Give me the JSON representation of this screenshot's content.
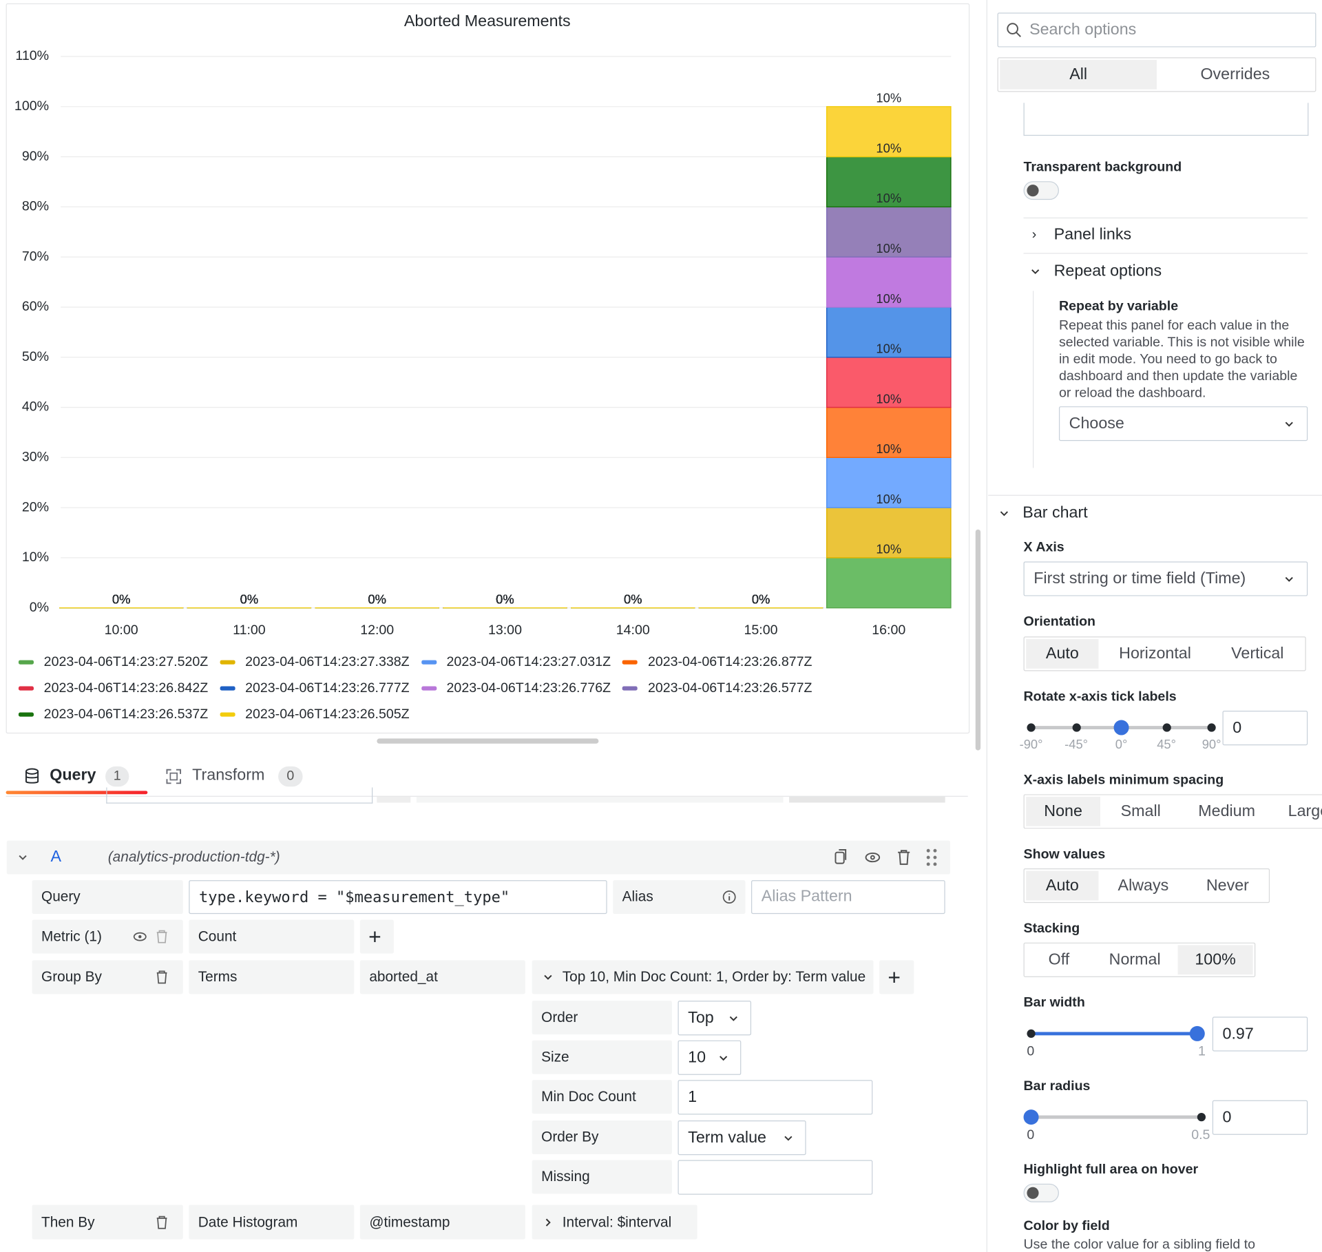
{
  "chart_data": {
    "type": "bar",
    "stacking": "percent",
    "title": "Aborted Measurements",
    "categories": [
      "10:00",
      "11:00",
      "12:00",
      "13:00",
      "14:00",
      "15:00",
      "16:00"
    ],
    "series": [
      {
        "name": "2023-04-06T14:23:27.520Z",
        "color": "#56a64b",
        "fill": "#6bbd66",
        "values": [
          0,
          0,
          0,
          0,
          0,
          0,
          10
        ],
        "value_labels": [
          "0%",
          "0%",
          "0%",
          "0%",
          "0%",
          "0%",
          "10%"
        ]
      },
      {
        "name": "2023-04-06T14:23:27.338Z",
        "color": "#e0b400",
        "fill": "#ebc43a",
        "values": [
          0,
          0,
          0,
          0,
          0,
          0,
          10
        ],
        "value_labels": [
          "0%",
          "0%",
          "0%",
          "0%",
          "0%",
          "0%",
          "10%"
        ]
      },
      {
        "name": "2023-04-06T14:23:27.031Z",
        "color": "#5794f2",
        "fill": "#73aaff",
        "values": [
          0,
          0,
          0,
          0,
          0,
          0,
          10
        ],
        "value_labels": [
          "0%",
          "0%",
          "0%",
          "0%",
          "0%",
          "0%",
          "10%"
        ]
      },
      {
        "name": "2023-04-06T14:23:26.877Z",
        "color": "#fa6400",
        "fill": "#ff8238",
        "values": [
          0,
          0,
          0,
          0,
          0,
          0,
          10
        ],
        "value_labels": [
          "0%",
          "0%",
          "0%",
          "0%",
          "0%",
          "0%",
          "10%"
        ]
      },
      {
        "name": "2023-04-06T14:23:26.842Z",
        "color": "#e02f44",
        "fill": "#fa5a6a",
        "values": [
          0,
          0,
          0,
          0,
          0,
          0,
          10
        ],
        "value_labels": [
          "0%",
          "0%",
          "0%",
          "0%",
          "0%",
          "0%",
          "10%"
        ]
      },
      {
        "name": "2023-04-06T14:23:26.777Z",
        "color": "#1f60c4",
        "fill": "#5494e8",
        "values": [
          0,
          0,
          0,
          0,
          0,
          0,
          10
        ],
        "value_labels": [
          "0%",
          "0%",
          "0%",
          "0%",
          "0%",
          "0%",
          "10%"
        ]
      },
      {
        "name": "2023-04-06T14:23:26.776Z",
        "color": "#b877d9",
        "fill": "#c07ae0",
        "values": [
          0,
          0,
          0,
          0,
          0,
          0,
          10
        ],
        "value_labels": [
          "0%",
          "0%",
          "0%",
          "0%",
          "0%",
          "0%",
          "10%"
        ]
      },
      {
        "name": "2023-04-06T14:23:26.577Z",
        "color": "#806eb7",
        "fill": "#9580b8",
        "values": [
          0,
          0,
          0,
          0,
          0,
          0,
          10
        ],
        "value_labels": [
          "0%",
          "0%",
          "0%",
          "0%",
          "0%",
          "0%",
          "10%"
        ]
      },
      {
        "name": "2023-04-06T14:23:26.537Z",
        "color": "#19730e",
        "fill": "#3d9542",
        "values": [
          0,
          0,
          0,
          0,
          0,
          0,
          10
        ],
        "value_labels": [
          "0%",
          "0%",
          "0%",
          "0%",
          "0%",
          "0%",
          "10%"
        ]
      },
      {
        "name": "2023-04-06T14:23:26.505Z",
        "color": "#f2cc0c",
        "fill": "#fbd43a",
        "values": [
          0,
          0,
          0,
          0,
          0,
          0,
          10
        ],
        "value_labels": [
          "0%",
          "0%",
          "0%",
          "0%",
          "0%",
          "0%",
          "10%"
        ]
      }
    ],
    "ylim": [
      0,
      110
    ],
    "yticks": [
      {
        "value": 0,
        "label": "0%"
      },
      {
        "value": 10,
        "label": "10%"
      },
      {
        "value": 20,
        "label": "20%"
      },
      {
        "value": 30,
        "label": "30%"
      },
      {
        "value": 40,
        "label": "40%"
      },
      {
        "value": 50,
        "label": "50%"
      },
      {
        "value": 60,
        "label": "60%"
      },
      {
        "value": 70,
        "label": "70%"
      },
      {
        "value": 80,
        "label": "80%"
      },
      {
        "value": 90,
        "label": "90%"
      },
      {
        "value": 100,
        "label": "100%"
      },
      {
        "value": 110,
        "label": "110%"
      }
    ],
    "bar_width": 0.97,
    "grid": true,
    "legend": "bottom"
  },
  "query_tabs": [
    {
      "label": "Query",
      "count": "1"
    },
    {
      "label": "Transform",
      "count": "0"
    }
  ],
  "query": {
    "ref": "A",
    "datasource": "(analytics-production-tdg-*)",
    "query_label": "Query",
    "query_text": "type.keyword = \"$measurement_type\"",
    "alias_label": "Alias",
    "alias_placeholder": "Alias Pattern",
    "metric_label": "Metric (1)",
    "metric": "Count",
    "group_by_label": "Group By",
    "group_by_type": "Terms",
    "group_by_field": "aborted_at",
    "group_by_summary": "Top 10, Min Doc Count: 1, Order by: Term value",
    "settings": [
      {
        "label": "Order",
        "value": "Top"
      },
      {
        "label": "Size",
        "value": "10"
      },
      {
        "label": "Min Doc Count",
        "value": "1"
      },
      {
        "label": "Order By",
        "value": "Term value"
      },
      {
        "label": "Missing"
      }
    ],
    "then_by_label": "Then By",
    "then_by_type": "Date Histogram",
    "then_by_field": "@timestamp",
    "then_by_summary": "Interval: $interval"
  },
  "options": {
    "search_placeholder": "Search options",
    "tabs": [
      "All",
      "Overrides"
    ],
    "transparent_background": "Transparent background",
    "panel_links": "Panel links",
    "repeat_options": "Repeat options",
    "repeat_by_variable": "Repeat by variable",
    "repeat_description": "Repeat this panel for each value in the selected variable. This is not visible while in edit mode. You need to go back to dashboard and then update the variable or reload the dashboard.",
    "repeat_choose": "Choose",
    "bar_chart": "Bar chart",
    "x_axis_label": "X Axis",
    "x_axis_value": "First string or time field (Time)",
    "orientation": {
      "label": "Orientation",
      "options": [
        "Auto",
        "Horizontal",
        "Vertical"
      ]
    },
    "rotate": {
      "label": "Rotate x-axis tick labels",
      "marks": [
        "-90°",
        "-45°",
        "0°",
        "45°",
        "90°"
      ],
      "value": "0"
    },
    "spacing": {
      "label": "X-axis labels minimum spacing",
      "options": [
        "None",
        "Small",
        "Medium",
        "Large"
      ]
    },
    "show_values": {
      "label": "Show values",
      "options": [
        "Auto",
        "Always",
        "Never"
      ]
    },
    "stacking": {
      "label": "Stacking",
      "options": [
        "Off",
        "Normal",
        "100%"
      ]
    },
    "bar_width": {
      "label": "Bar width",
      "min": "0",
      "max": "1",
      "value": "0.97"
    },
    "bar_radius": {
      "label": "Bar radius",
      "min": "0",
      "max": "0.5",
      "value": "0"
    },
    "highlight": "Highlight full area on hover",
    "color_by_field": "Color by field",
    "color_by_field_description": "Use the color value for a sibling field to"
  }
}
